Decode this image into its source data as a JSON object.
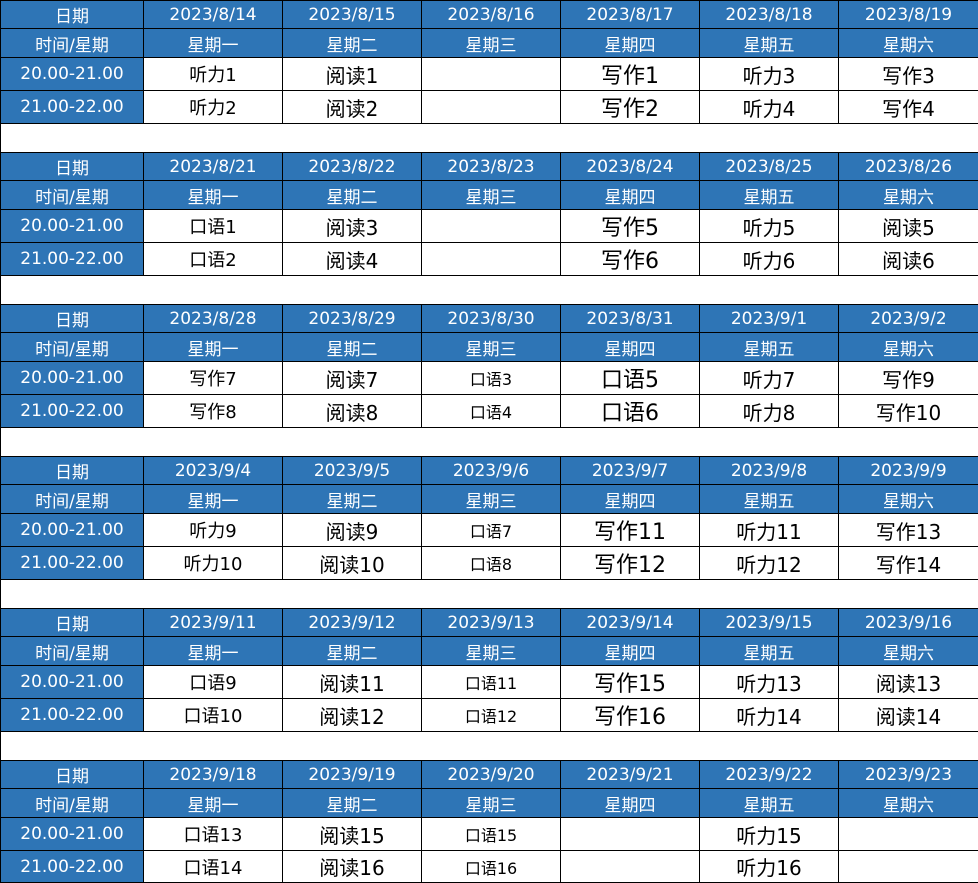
{
  "colors": {
    "header_bg": "#2e75b6",
    "header_text": "#ffffff",
    "cell_text": "#000000"
  },
  "labels": {
    "date": "日期",
    "time_weekday": "时间/星期",
    "slot1": "20.00-21.00",
    "slot2": "21.00-22.00"
  },
  "weekdays": [
    "星期一",
    "星期二",
    "星期三",
    "星期四",
    "星期五",
    "星期六"
  ],
  "weeks": [
    {
      "dates": [
        "2023/8/14",
        "2023/8/15",
        "2023/8/16",
        "2023/8/17",
        "2023/8/18",
        "2023/8/19"
      ],
      "slot1": [
        "听力1",
        "阅读1",
        "",
        "写作1",
        "听力3",
        "写作3"
      ],
      "slot2": [
        "听力2",
        "阅读2",
        "",
        "写作2",
        "听力4",
        "写作4"
      ]
    },
    {
      "dates": [
        "2023/8/21",
        "2023/8/22",
        "2023/8/23",
        "2023/8/24",
        "2023/8/25",
        "2023/8/26"
      ],
      "slot1": [
        "口语1",
        "阅读3",
        "",
        "写作5",
        "听力5",
        "阅读5"
      ],
      "slot2": [
        "口语2",
        "阅读4",
        "",
        "写作6",
        "听力6",
        "阅读6"
      ]
    },
    {
      "dates": [
        "2023/8/28",
        "2023/8/29",
        "2023/8/30",
        "2023/8/31",
        "2023/9/1",
        "2023/9/2"
      ],
      "slot1": [
        "写作7",
        "阅读7",
        "口语3",
        "口语5",
        "听力7",
        "写作9"
      ],
      "slot2": [
        "写作8",
        "阅读8",
        "口语4",
        "口语6",
        "听力8",
        "写作10"
      ]
    },
    {
      "dates": [
        "2023/9/4",
        "2023/9/5",
        "2023/9/6",
        "2023/9/7",
        "2023/9/8",
        "2023/9/9"
      ],
      "slot1": [
        "听力9",
        "阅读9",
        "口语7",
        "写作11",
        "听力11",
        "写作13"
      ],
      "slot2": [
        "听力10",
        "阅读10",
        "口语8",
        "写作12",
        "听力12",
        "写作14"
      ]
    },
    {
      "dates": [
        "2023/9/11",
        "2023/9/12",
        "2023/9/13",
        "2023/9/14",
        "2023/9/15",
        "2023/9/16"
      ],
      "slot1": [
        "口语9",
        "阅读11",
        "口语11",
        "写作15",
        "听力13",
        "阅读13"
      ],
      "slot2": [
        "口语10",
        "阅读12",
        "口语12",
        "写作16",
        "听力14",
        "阅读14"
      ]
    },
    {
      "dates": [
        "2023/9/18",
        "2023/9/19",
        "2023/9/20",
        "2023/9/21",
        "2023/9/22",
        "2023/9/23"
      ],
      "slot1": [
        "口语13",
        "阅读15",
        "口语15",
        "",
        "听力15",
        ""
      ],
      "slot2": [
        "口语14",
        "阅读16",
        "口语16",
        "",
        "听力16",
        ""
      ]
    }
  ]
}
